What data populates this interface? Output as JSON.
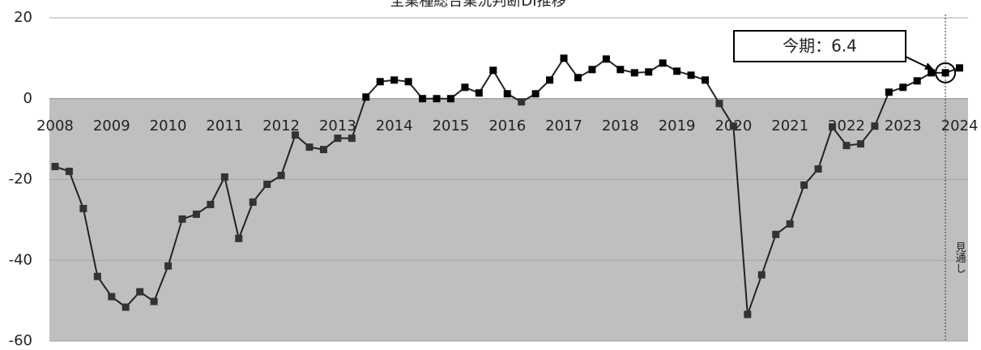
{
  "chart_data": {
    "type": "line",
    "title": "全業種総合業況判断DI推移",
    "x": [
      2008,
      2008.25,
      2008.5,
      2008.75,
      2009,
      2009.25,
      2009.5,
      2009.75,
      2010,
      2010.25,
      2010.5,
      2010.75,
      2011,
      2011.25,
      2011.5,
      2011.75,
      2012,
      2012.25,
      2012.5,
      2012.75,
      2013,
      2013.25,
      2013.5,
      2013.75,
      2014,
      2014.25,
      2014.5,
      2014.75,
      2015,
      2015.25,
      2015.5,
      2015.75,
      2016,
      2016.25,
      2016.5,
      2016.75,
      2017,
      2017.25,
      2017.5,
      2017.75,
      2018,
      2018.25,
      2018.5,
      2018.75,
      2019,
      2019.25,
      2019.5,
      2019.75,
      2020,
      2020.25,
      2020.5,
      2020.75,
      2021,
      2021.25,
      2021.5,
      2021.75,
      2022,
      2022.25,
      2022.5,
      2022.75,
      2023,
      2023.25,
      2023.5,
      2023.75,
      2024
    ],
    "series": [
      {
        "color": "#222222",
        "values": [
          -16.8,
          -18,
          -27.2,
          -44,
          -49,
          -51.6,
          -47.8,
          -50.2,
          -41.4,
          -29.8,
          -28.6,
          -26.2,
          -19.4,
          -34.6,
          -25.6,
          -21.2,
          -19,
          -9,
          -12,
          -12.6,
          -9.8,
          -9.8,
          0.4,
          4.2,
          4.6,
          4.2,
          0,
          0,
          0,
          2.8,
          1.4,
          7,
          1.2,
          -0.8,
          1.2,
          4.6,
          10,
          5.2,
          7.2,
          9.8,
          7.2,
          6.4,
          6.6,
          8.8,
          6.8,
          5.8,
          4.6,
          -1.2,
          -6.8,
          -53.4,
          -43.6,
          -33.6,
          -31,
          -21.4,
          -17.4,
          -7,
          -11.6,
          -11.2,
          -6.8,
          1.6,
          2.8,
          4.4,
          6.4,
          6.4,
          7.6
        ]
      }
    ],
    "xlim": [
      2007.9,
      2024.15
    ],
    "xticks": [
      2008,
      2009,
      2010,
      2011,
      2012,
      2013,
      2014,
      2015,
      2016,
      2017,
      2018,
      2019,
      2020,
      2021,
      2022,
      2023,
      2024
    ],
    "ylim": [
      -60,
      20
    ],
    "yticks": [
      -60,
      -40,
      -20,
      0,
      20
    ],
    "grid": true,
    "below_zero_color": "#bfbfbf",
    "annotation": {
      "text": "今期：6.4",
      "x": 2023.75,
      "y": 6.4
    },
    "forecast": {
      "text": "見通し",
      "x": 2023.75
    }
  }
}
